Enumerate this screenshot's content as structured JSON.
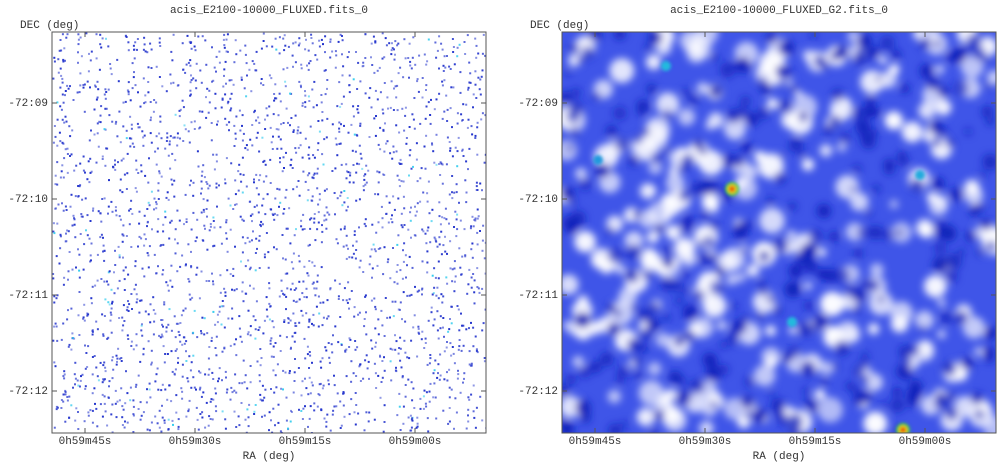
{
  "panels": [
    {
      "title": "acis_E2100-10000_FLUXED.fits_0",
      "xlabel": "RA (deg)",
      "ylabel": "DEC (deg)",
      "xticks": [
        "0h59m45s",
        "0h59m30s",
        "0h59m15s",
        "0h59m00s"
      ],
      "yticks": [
        "-72:09",
        "-72:10",
        "-72:11",
        "-72:12"
      ]
    },
    {
      "title": "acis_E2100-10000_FLUXED_G2.fits_0",
      "xlabel": "RA (deg)",
      "ylabel": "DEC (deg)",
      "xticks": [
        "0h59m45s",
        "0h59m30s",
        "0h59m15s",
        "0h59m00s"
      ],
      "yticks": [
        "-72:09",
        "-72:10",
        "-72:11",
        "-72:12"
      ]
    }
  ]
}
